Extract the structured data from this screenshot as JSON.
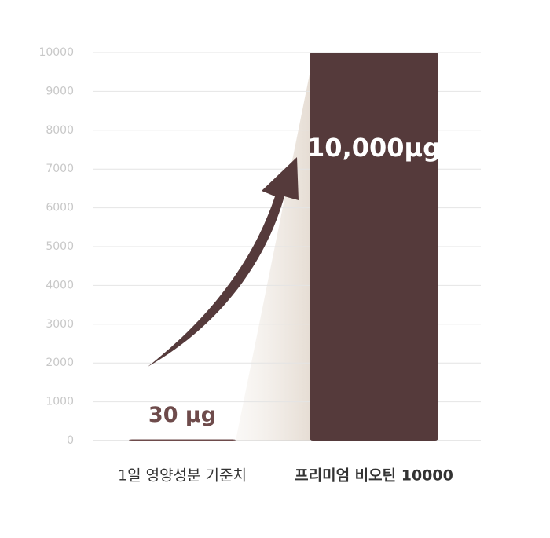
{
  "chart_data": {
    "type": "bar",
    "categories": [
      "1일 영양성분 기준치",
      "프리미엄 비오틴 10000"
    ],
    "values": [
      30,
      10000
    ],
    "value_labels": [
      "30 μg",
      "10,000μg"
    ],
    "colors": [
      "#6e4b4b",
      "#553a3b"
    ],
    "ylim": [
      0,
      10000
    ],
    "yticks": [
      0,
      1000,
      2000,
      3000,
      4000,
      5000,
      6000,
      7000,
      8000,
      9000,
      10000
    ],
    "grid": true
  }
}
